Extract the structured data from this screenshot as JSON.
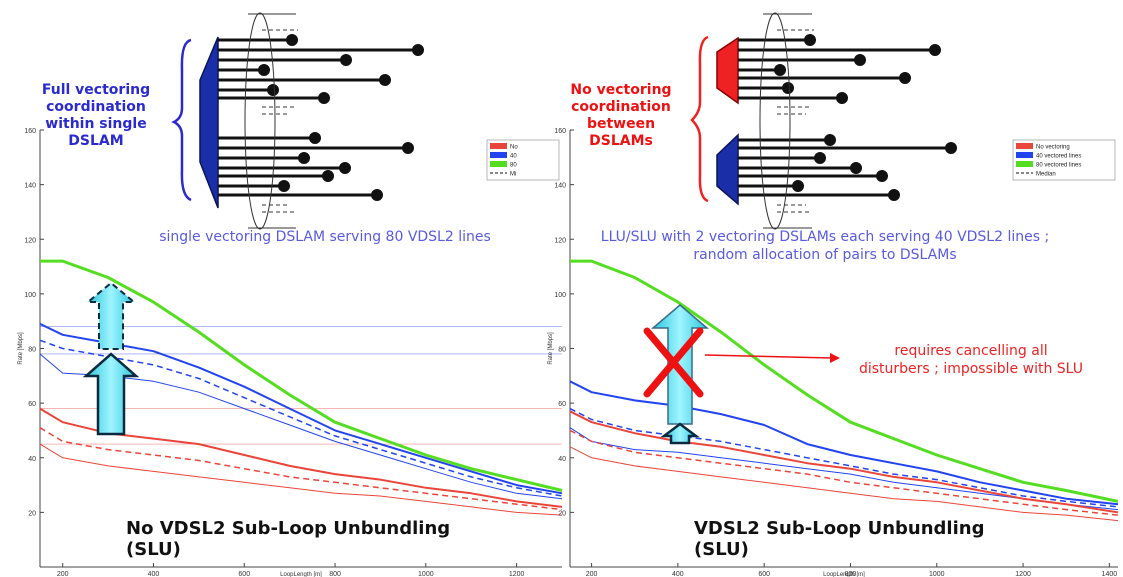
{
  "left_annotations": {
    "coordination_title": "Full vectoring coordination within single DSLAM",
    "caption": "single vectoring DSLAM serving 80 VDSL2 lines",
    "bottom_title": "No VDSL2 Sub-Loop Unbundling (SLU)"
  },
  "right_annotations": {
    "coordination_title": "No vectoring coordination between DSLAMs",
    "caption_line1": "LLU/SLU with 2 vectoring DSLAMs each serving 40 VDSL2 lines ;",
    "caption_line2": "random allocation of pairs to DSLAMs",
    "note_line1": "requires cancelling all",
    "note_line2": "disturbers ; impossible with SLU",
    "bottom_title": "VDSL2 Sub-Loop Unbundling (SLU)"
  },
  "colors": {
    "red": "#e8463a",
    "blue": "#2244ee",
    "green": "#55dd22",
    "cyan": "#33ddee",
    "dslam_blue": "#1a2ea8",
    "dslam_red": "#ee2222"
  },
  "chart_data": [
    {
      "type": "line",
      "xlabel": "LoopLength [m]",
      "ylabel": "Rate [Mbps]",
      "xlim": [
        150,
        1300
      ],
      "ylim": [
        0,
        160
      ],
      "xticks": [
        "200",
        "400",
        "600",
        "800",
        "1000",
        "1200"
      ],
      "yticks": [
        "20",
        "40",
        "60",
        "80",
        "100",
        "120",
        "140",
        "160"
      ],
      "legend": [
        "No",
        "40",
        "80",
        "Mi"
      ],
      "legend_position": "top-right",
      "x": [
        150,
        200,
        300,
        400,
        500,
        600,
        700,
        800,
        900,
        1000,
        1100,
        1200,
        1300
      ],
      "series": [
        {
          "name": "80",
          "color": "green",
          "style": "solid",
          "width": 3,
          "values": [
            112,
            112,
            106,
            97,
            86,
            74,
            63,
            53,
            47,
            41,
            36,
            32,
            28
          ]
        },
        {
          "color": "blue",
          "style": "solid",
          "width": 2,
          "values": [
            89,
            85,
            82,
            79,
            73,
            66,
            58,
            50,
            45,
            40,
            35,
            30,
            27
          ]
        },
        {
          "color": "blue",
          "style": "dashed",
          "width": 1.5,
          "values": [
            83,
            80,
            77,
            74,
            69,
            62,
            55,
            48,
            43,
            38,
            33,
            29,
            26
          ]
        },
        {
          "color": "blue",
          "style": "solid",
          "width": 1,
          "values": [
            78,
            71,
            70,
            68,
            64,
            58,
            52,
            46,
            41,
            36,
            31,
            27,
            25
          ]
        },
        {
          "color": "red",
          "style": "solid",
          "width": 2,
          "values": [
            58,
            53,
            49,
            47,
            45,
            41,
            37,
            34,
            32,
            29,
            27,
            24,
            22
          ]
        },
        {
          "color": "red",
          "style": "dashed",
          "width": 1.5,
          "values": [
            51,
            46,
            43,
            41,
            39,
            36,
            33,
            31,
            29,
            27,
            25,
            23,
            21
          ]
        },
        {
          "color": "red",
          "style": "solid",
          "width": 1,
          "values": [
            45,
            40,
            37,
            35,
            33,
            31,
            29,
            27,
            26,
            24,
            22,
            20,
            19
          ]
        }
      ],
      "reference_lines": [
        {
          "value": 88,
          "color": "blue"
        },
        {
          "value": 78,
          "color": "blue"
        },
        {
          "value": 58,
          "color": "red"
        },
        {
          "value": 45,
          "color": "red"
        }
      ]
    },
    {
      "type": "line",
      "xlabel": "LoopLength [m]",
      "ylabel": "Rate [Mbps]",
      "xlim": [
        150,
        1420
      ],
      "ylim": [
        0,
        160
      ],
      "xticks": [
        "200",
        "400",
        "600",
        "800",
        "1000",
        "1200",
        "1400"
      ],
      "yticks": [
        "20",
        "40",
        "60",
        "80",
        "100",
        "120",
        "140",
        "160"
      ],
      "legend": [
        "No vectoring",
        "40 vectored lines",
        "80 vectored lines",
        "Median"
      ],
      "legend_position": "top-right",
      "x": [
        150,
        200,
        300,
        400,
        500,
        600,
        700,
        800,
        900,
        1000,
        1100,
        1200,
        1300,
        1420
      ],
      "series": [
        {
          "name": "80 vectored lines",
          "color": "green",
          "style": "solid",
          "width": 3,
          "values": [
            112,
            112,
            106,
            97,
            86,
            74,
            63,
            53,
            47,
            41,
            36,
            31,
            28,
            24
          ]
        },
        {
          "name": "40 vectored lines",
          "color": "blue",
          "style": "solid",
          "width": 2,
          "values": [
            68,
            64,
            61,
            59,
            56,
            52,
            45,
            41,
            38,
            35,
            31,
            28,
            25,
            23
          ]
        },
        {
          "color": "blue",
          "style": "dashed",
          "width": 1.5,
          "values": [
            58,
            54,
            50,
            48,
            46,
            43,
            40,
            37,
            34,
            32,
            29,
            26,
            24,
            22
          ]
        },
        {
          "color": "blue",
          "style": "solid",
          "width": 1,
          "values": [
            51,
            46,
            43,
            42,
            40,
            38,
            36,
            34,
            31,
            29,
            27,
            25,
            23,
            21
          ]
        },
        {
          "name": "No vectoring",
          "color": "red",
          "style": "solid",
          "width": 2,
          "values": [
            57,
            53,
            49,
            46,
            44,
            41,
            38,
            36,
            33,
            31,
            28,
            25,
            23,
            20
          ]
        },
        {
          "color": "red",
          "style": "dashed",
          "width": 1.5,
          "values": [
            50,
            46,
            42,
            40,
            38,
            36,
            34,
            31,
            29,
            27,
            25,
            23,
            21,
            19
          ]
        },
        {
          "color": "red",
          "style": "solid",
          "width": 1,
          "values": [
            44,
            40,
            37,
            35,
            33,
            31,
            29,
            27,
            25,
            24,
            22,
            20,
            19,
            17
          ]
        }
      ]
    }
  ]
}
